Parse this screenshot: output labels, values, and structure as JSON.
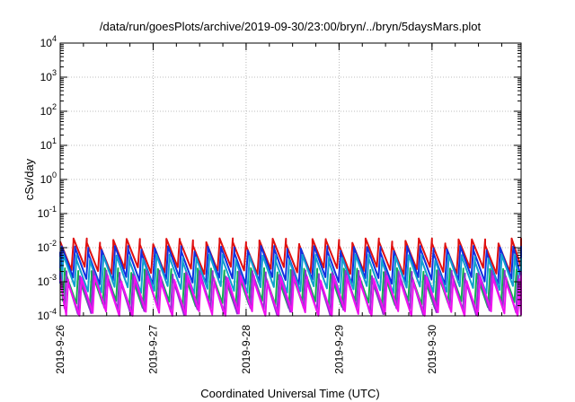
{
  "chart_data": {
    "type": "line",
    "title": "/data/run/goesPlots/archive/2019-09-30/23:00/bryn/../bryn/5daysMars.plot",
    "xlabel": "Coordinated Universal Time (UTC)",
    "ylabel": "cSv/day",
    "yscale": "log",
    "ylim": [
      0.0001,
      10000
    ],
    "xlim": [
      "2019-09-26",
      "2019-09-30T23:00"
    ],
    "x_ticks": [
      "2019-9-26",
      "2019-9-27",
      "2019-9-28",
      "2019-9-29",
      "2019-9-30"
    ],
    "y_ticks": [
      {
        "base": "10",
        "exp": "-4",
        "value": 0.0001
      },
      {
        "base": "10",
        "exp": "-3",
        "value": 0.001
      },
      {
        "base": "10",
        "exp": "-2",
        "value": 0.01
      },
      {
        "base": "10",
        "exp": "-1",
        "value": 0.1
      },
      {
        "base": "10",
        "exp": "0",
        "value": 1
      },
      {
        "base": "10",
        "exp": "1",
        "value": 10
      },
      {
        "base": "10",
        "exp": "2",
        "value": 100
      },
      {
        "base": "10",
        "exp": "3",
        "value": 1000
      },
      {
        "base": "10",
        "exp": "4",
        "value": 10000
      }
    ],
    "grid": true,
    "pattern": "sawtooth",
    "cycles_per_day": 7,
    "series": [
      {
        "color": "#e01010",
        "peak": 0.015,
        "trough": 0.0022
      },
      {
        "color": "#1030e0",
        "peak": 0.009,
        "trough": 0.0011
      },
      {
        "color": "#10a0d0",
        "peak": 0.005,
        "trough": 0.0006
      },
      {
        "color": "#10b050",
        "peak": 0.002,
        "trough": 0.00022
      },
      {
        "color": "#9030d0",
        "peak": 0.0017,
        "trough": 0.00014
      },
      {
        "color": "#f010f0",
        "peak": 0.0012,
        "trough": 0.00011
      }
    ]
  }
}
